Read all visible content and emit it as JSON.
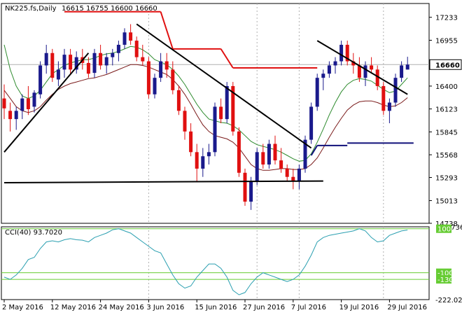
{
  "header": {
    "symbol": "NK225.fs,Daily",
    "ohlc": "16615 16755 16600 16660"
  },
  "colors": {
    "bull": "#1a1a8c",
    "bear": "#e01010",
    "wick": "#333333",
    "price_line": "#e01010",
    "ma_fast": "#2e8b2e",
    "ma_slow": "#7a1a1a",
    "trendline": "#000000",
    "support": "#10107a",
    "cci": "#2a9fb0",
    "level": "#66cc33",
    "grid": "#b0b0b0",
    "frame": "#000000",
    "current_price_box": "#ffffff"
  },
  "chart_data": [
    {
      "type": "candlestick",
      "title": "NK225.fs,Daily",
      "current_price": "16660",
      "ylim": [
        14738,
        17400
      ],
      "yticks": [
        "17233",
        "16955",
        "16660",
        "16400",
        "16123",
        "15845",
        "15568",
        "15293",
        "15013",
        "14738"
      ],
      "x_labels": [
        "2 May 2016",
        "12 May 2016",
        "24 May 2016",
        "3 Jun 2016",
        "15 Jun 2016",
        "27 Jun 2016",
        "7 Jul 2016",
        "19 Jul 2016",
        "29 Jul 2016"
      ],
      "x_label_index": [
        0,
        8,
        16,
        24,
        32,
        40,
        48,
        56,
        64
      ],
      "candles": [
        [
          16250,
          16420,
          16000,
          16130
        ],
        [
          16100,
          16200,
          15850,
          16000
        ],
        [
          16000,
          16150,
          15870,
          16100
        ],
        [
          16100,
          16300,
          16000,
          16250
        ],
        [
          16250,
          16400,
          16050,
          16120
        ],
        [
          16150,
          16350,
          16080,
          16320
        ],
        [
          16300,
          16700,
          16250,
          16650
        ],
        [
          16650,
          16900,
          16550,
          16800
        ],
        [
          16800,
          16850,
          16450,
          16500
        ],
        [
          16480,
          16700,
          16400,
          16600
        ],
        [
          16600,
          16850,
          16500,
          16780
        ],
        [
          16780,
          16850,
          16550,
          16600
        ],
        [
          16600,
          16820,
          16550,
          16750
        ],
        [
          16750,
          16850,
          16600,
          16680
        ],
        [
          16680,
          16750,
          16500,
          16550
        ],
        [
          16560,
          16850,
          16500,
          16800
        ],
        [
          16800,
          16900,
          16600,
          16650
        ],
        [
          16650,
          16800,
          16550,
          16750
        ],
        [
          16750,
          16850,
          16650,
          16800
        ],
        [
          16800,
          16950,
          16700,
          16900
        ],
        [
          16900,
          17100,
          16850,
          17050
        ],
        [
          17050,
          17150,
          16900,
          16950
        ],
        [
          16950,
          17000,
          16700,
          16750
        ],
        [
          16750,
          16900,
          16650,
          16700
        ],
        [
          16700,
          16750,
          16250,
          16300
        ],
        [
          16300,
          16550,
          16250,
          16500
        ],
        [
          16500,
          16800,
          16450,
          16700
        ],
        [
          16700,
          16800,
          16500,
          16600
        ],
        [
          16600,
          16700,
          16300,
          16350
        ],
        [
          16350,
          16400,
          16050,
          16100
        ],
        [
          16100,
          16150,
          15750,
          15850
        ],
        [
          15850,
          15950,
          15550,
          15600
        ],
        [
          15600,
          15700,
          15250,
          15400
        ],
        [
          15400,
          15650,
          15300,
          15550
        ],
        [
          15550,
          15700,
          15450,
          15600
        ],
        [
          15600,
          16200,
          15550,
          16150
        ],
        [
          16150,
          16250,
          15950,
          16000
        ],
        [
          16000,
          16450,
          15950,
          16400
        ],
        [
          16400,
          16450,
          15800,
          15850
        ],
        [
          15850,
          15900,
          15300,
          15350
        ],
        [
          15350,
          15400,
          14950,
          15000
        ],
        [
          15000,
          15300,
          14900,
          15250
        ],
        [
          15250,
          15650,
          15200,
          15600
        ],
        [
          15600,
          15700,
          15400,
          15450
        ],
        [
          15450,
          15750,
          15400,
          15700
        ],
        [
          15700,
          15800,
          15450,
          15500
        ],
        [
          15500,
          15650,
          15350,
          15400
        ],
        [
          15400,
          15450,
          15250,
          15300
        ],
        [
          15300,
          15400,
          15150,
          15250
        ],
        [
          15250,
          15450,
          15150,
          15400
        ],
        [
          15400,
          15800,
          15350,
          15750
        ],
        [
          15750,
          16200,
          15700,
          16150
        ],
        [
          16150,
          16550,
          16100,
          16500
        ],
        [
          16500,
          16600,
          16350,
          16550
        ],
        [
          16550,
          16700,
          16500,
          16650
        ],
        [
          16650,
          16750,
          16550,
          16700
        ],
        [
          16700,
          16950,
          16650,
          16900
        ],
        [
          16900,
          16950,
          16650,
          16700
        ],
        [
          16700,
          16800,
          16550,
          16650
        ],
        [
          16650,
          16750,
          16450,
          16500
        ],
        [
          16500,
          16700,
          16400,
          16650
        ],
        [
          16650,
          16750,
          16550,
          16600
        ],
        [
          16600,
          16650,
          16350,
          16400
        ],
        [
          16400,
          16450,
          16050,
          16100
        ],
        [
          16100,
          16250,
          15950,
          16200
        ],
        [
          16200,
          16550,
          16150,
          16500
        ],
        [
          16500,
          16700,
          16450,
          16650
        ],
        [
          16600,
          16755,
          16600,
          16660
        ]
      ],
      "ma_fast": [
        16900,
        16600,
        16400,
        16280,
        16250,
        16280,
        16350,
        16450,
        16550,
        16600,
        16650,
        16680,
        16700,
        16720,
        16720,
        16740,
        16770,
        16790,
        16800,
        16820,
        16850,
        16880,
        16870,
        16840,
        16790,
        16720,
        16690,
        16660,
        16600,
        16520,
        16420,
        16300,
        16180,
        16080,
        16000,
        15980,
        15960,
        15950,
        15920,
        15870,
        15800,
        15730,
        15690,
        15670,
        15650,
        15630,
        15600,
        15560,
        15520,
        15490,
        15500,
        15580,
        15720,
        15880,
        16050,
        16200,
        16330,
        16420,
        16470,
        16490,
        16480,
        16460,
        16410,
        16360,
        16320,
        16340,
        16420,
        16500
      ],
      "ma_slow": [
        16350,
        16250,
        16150,
        16100,
        16080,
        16100,
        16150,
        16230,
        16300,
        16360,
        16400,
        16430,
        16450,
        16470,
        16490,
        16500,
        16520,
        16540,
        16570,
        16600,
        16630,
        16660,
        16660,
        16650,
        16630,
        16600,
        16570,
        16540,
        16480,
        16400,
        16300,
        16180,
        16050,
        15930,
        15850,
        15800,
        15780,
        15760,
        15720,
        15650,
        15550,
        15450,
        15400,
        15380,
        15380,
        15390,
        15400,
        15400,
        15390,
        15390,
        15400,
        15450,
        15530,
        15650,
        15780,
        15900,
        16010,
        16110,
        16170,
        16210,
        16220,
        16220,
        16200,
        16170,
        16150,
        16160,
        16200,
        16260
      ],
      "price_line": [
        {
          "i0": 10,
          "i1": 26,
          "v": 17300
        },
        {
          "i0": 26,
          "i1": 28,
          "v": 17300,
          "v1": 16850
        },
        {
          "i0": 28,
          "i1": 36,
          "v": 16850
        },
        {
          "i0": 36,
          "i1": 38,
          "v": 16850,
          "v1": 16620
        },
        {
          "i0": 38,
          "i1": 52,
          "v": 16620
        }
      ],
      "support_line": [
        {
          "i0": 52,
          "i1": 57,
          "v": 15680
        },
        {
          "i0": 57,
          "i1": 68,
          "v": 15710
        }
      ],
      "trendlines": [
        {
          "i0": 0,
          "v0": 15600,
          "i1": 14,
          "v1": 16800
        },
        {
          "i0": 22,
          "v0": 17150,
          "i1": 51,
          "v1": 15650
        },
        {
          "i0": 52,
          "v0": 16950,
          "i1": 67,
          "v1": 16300
        },
        {
          "i0": 0,
          "v0": 15230,
          "i1": 53,
          "v1": 15250
        }
      ],
      "vgrid_index": [
        24,
        42,
        49,
        63
      ]
    },
    {
      "type": "line",
      "title": "CCI(40) 93.7020",
      "ylim": [
        -222.0255,
        108.7365
      ],
      "yticks": [
        "108.7365",
        "100",
        "-100",
        "-130",
        "-222.0255"
      ],
      "levels": [
        100,
        -100,
        -130
      ],
      "values": [
        -120,
        -130,
        -110,
        -80,
        -40,
        -30,
        10,
        40,
        45,
        40,
        50,
        55,
        50,
        48,
        40,
        60,
        70,
        80,
        95,
        100,
        90,
        80,
        60,
        40,
        20,
        0,
        -10,
        -60,
        -110,
        -150,
        -170,
        -160,
        -120,
        -90,
        -60,
        -60,
        -80,
        -120,
        -180,
        -200,
        -190,
        -150,
        -120,
        -100,
        -110,
        -120,
        -130,
        -140,
        -130,
        -110,
        -70,
        -20,
        40,
        60,
        70,
        75,
        80,
        85,
        90,
        100,
        90,
        60,
        40,
        45,
        70,
        80,
        90,
        94
      ]
    }
  ]
}
